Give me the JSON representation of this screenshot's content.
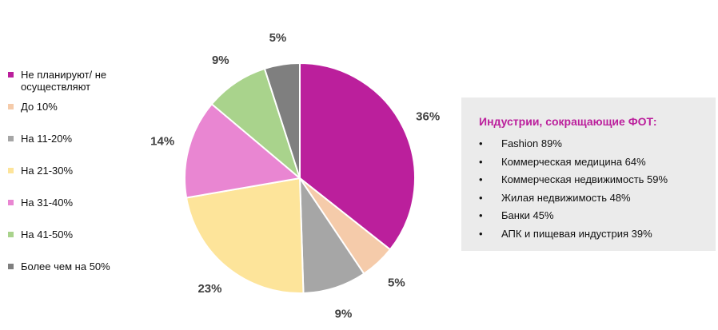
{
  "chart_data": {
    "type": "pie",
    "categories": [
      "Не планируют/ не осуществляют",
      "До 10%",
      "На 11-20%",
      "На 21-30%",
      "На 31-40%",
      "На 41-50%",
      "Более чем на 50%"
    ],
    "values": [
      36,
      5,
      9,
      23,
      14,
      9,
      5
    ],
    "value_labels": [
      "36%",
      "5%",
      "9%",
      "23%",
      "14%",
      "9%",
      "5%"
    ],
    "colors": [
      "#bb1f9c",
      "#f5cbaa",
      "#a6a6a6",
      "#fde49a",
      "#e986d2",
      "#a9d38c",
      "#7f7f7f"
    ],
    "legend_position": "left",
    "start": "12 o'clock, clockwise"
  },
  "info_box": {
    "title": "Индустрии, сокращающие ФОТ:",
    "bullet": "•",
    "items": [
      "Fashion 89%",
      "Коммерческая медицина 64%",
      "Коммерческая недвижимость 59%",
      "Жилая недвижимость 48%",
      "Банки 45%",
      "АПК и пищевая индустрия 39%"
    ],
    "title_color": "#bb1f9c",
    "background": "#ebebeb"
  }
}
